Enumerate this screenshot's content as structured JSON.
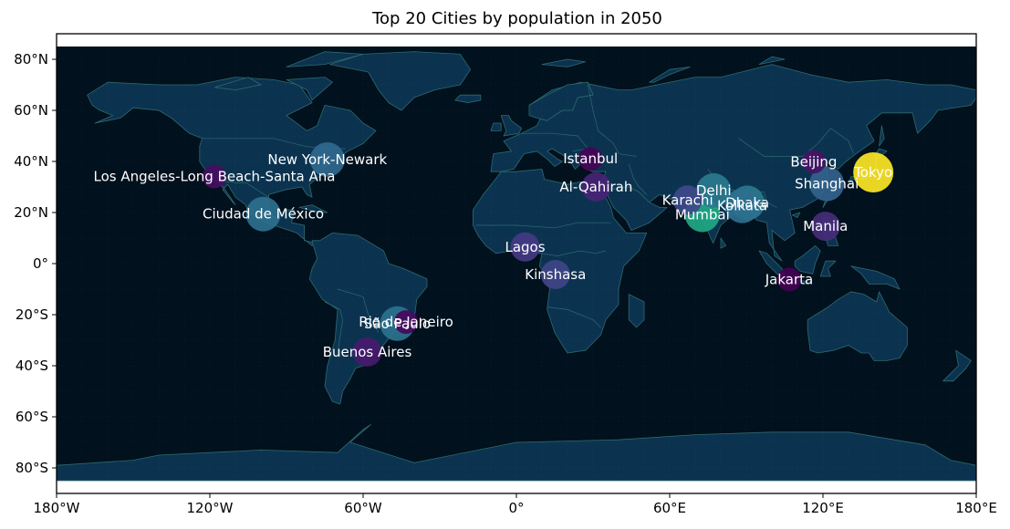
{
  "title": "Top 20 Cities by population in 2050",
  "x_ticks": [
    "180°W",
    "120°W",
    "60°W",
    "0°",
    "60°E",
    "120°E",
    "180°E"
  ],
  "y_ticks": [
    "80°N",
    "60°N",
    "40°N",
    "20°N",
    "0°",
    "20°S",
    "40°S",
    "60°S",
    "80°S"
  ],
  "colors": {
    "ocean": "#01111d",
    "land": "#0b3350",
    "border": "#2e6a6e",
    "text": "#ffffff"
  },
  "cities": [
    {
      "name": "Tokyo",
      "lon": 139.7,
      "lat": 35.7,
      "color": "#fde725"
    },
    {
      "name": "Mumbai",
      "lon": 72.8,
      "lat": 19.1,
      "color": "#22a884"
    },
    {
      "name": "Delhi",
      "lon": 77.2,
      "lat": 28.6,
      "color": "#2a788e"
    },
    {
      "name": "Dhaka",
      "lon": 90.4,
      "lat": 23.8,
      "color": "#2a788e"
    },
    {
      "name": "Kolkata",
      "lon": 88.4,
      "lat": 22.6,
      "color": "#2d6f8e"
    },
    {
      "name": "São Paulo",
      "lon": -46.6,
      "lat": -23.5,
      "color": "#2c728e"
    },
    {
      "name": "Ciudad de México",
      "lon": -99.1,
      "lat": 19.4,
      "color": "#2d708e"
    },
    {
      "name": "New York-Newark",
      "lon": -74.0,
      "lat": 40.7,
      "color": "#31688e"
    },
    {
      "name": "Shanghai",
      "lon": 121.5,
      "lat": 31.2,
      "color": "#33638d"
    },
    {
      "name": "Karachi",
      "lon": 67.0,
      "lat": 24.9,
      "color": "#3e4989"
    },
    {
      "name": "Kinshasa",
      "lon": 15.3,
      "lat": -4.3,
      "color": "#414487"
    },
    {
      "name": "Lagos",
      "lon": 3.4,
      "lat": 6.5,
      "color": "#443a83"
    },
    {
      "name": "Manila",
      "lon": 121.0,
      "lat": 14.6,
      "color": "#472c7a"
    },
    {
      "name": "Al-Qahirah",
      "lon": 31.2,
      "lat": 30.0,
      "color": "#482475"
    },
    {
      "name": "Buenos Aires",
      "lon": -58.4,
      "lat": -34.6,
      "color": "#481a6c"
    },
    {
      "name": "Beijing",
      "lon": 116.4,
      "lat": 39.9,
      "color": "#471365"
    },
    {
      "name": "Los Angeles-Long Beach-Santa Ana",
      "lon": -118.2,
      "lat": 34.1,
      "color": "#470e61"
    },
    {
      "name": "Rio de Janeiro",
      "lon": -43.2,
      "lat": -22.9,
      "color": "#46085c"
    },
    {
      "name": "Istanbul",
      "lon": 29.0,
      "lat": 41.0,
      "color": "#450457"
    },
    {
      "name": "Jakarta",
      "lon": 106.8,
      "lat": -6.2,
      "color": "#440154"
    }
  ]
}
